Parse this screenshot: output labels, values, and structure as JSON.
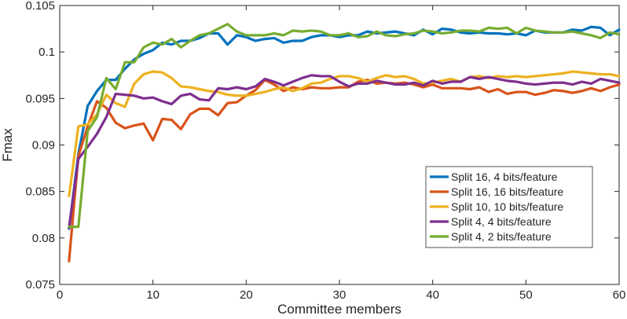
{
  "chart_data": {
    "type": "line",
    "title": "",
    "xlabel": "Committee members",
    "ylabel": "Fmax",
    "xlim": [
      0,
      60
    ],
    "ylim": [
      0.075,
      0.105
    ],
    "xticks": [
      0,
      10,
      20,
      30,
      40,
      50,
      60
    ],
    "xtick_labels": [
      "0",
      "10",
      "20",
      "30",
      "40",
      "50",
      "60"
    ],
    "yticks": [
      0.075,
      0.08,
      0.085,
      0.09,
      0.095,
      0.1,
      0.105
    ],
    "ytick_labels": [
      "0.075",
      "0.08",
      "0.085",
      "0.09",
      "0.095",
      "0.1",
      "0.105"
    ],
    "grid": false,
    "legend_position": "center-right",
    "x": [
      1,
      2,
      3,
      4,
      5,
      6,
      7,
      8,
      9,
      10,
      11,
      12,
      13,
      14,
      15,
      16,
      17,
      18,
      19,
      20,
      21,
      22,
      23,
      24,
      25,
      26,
      27,
      28,
      29,
      30,
      31,
      32,
      33,
      34,
      35,
      36,
      37,
      38,
      39,
      40,
      41,
      42,
      43,
      44,
      45,
      46,
      47,
      48,
      49,
      50,
      51,
      52,
      53,
      54,
      55,
      56,
      57,
      58,
      59,
      60
    ],
    "series": [
      {
        "name": "Split 16, 4 bits/feature",
        "color": "#0072BD",
        "values": [
          0.081,
          0.089,
          0.0942,
          0.0958,
          0.097,
          0.097,
          0.0982,
          0.0992,
          0.0998,
          0.1002,
          0.101,
          0.1008,
          0.1012,
          0.1012,
          0.1015,
          0.102,
          0.102,
          0.1008,
          0.1018,
          0.1016,
          0.1012,
          0.1014,
          0.1015,
          0.101,
          0.1012,
          0.1012,
          0.1016,
          0.1018,
          0.1018,
          0.1016,
          0.1018,
          0.1018,
          0.1022,
          0.102,
          0.1021,
          0.1022,
          0.102,
          0.1018,
          0.1024,
          0.1019,
          0.1025,
          0.1024,
          0.1021,
          0.102,
          0.1021,
          0.102,
          0.102,
          0.1019,
          0.102,
          0.1018,
          0.1023,
          0.1021,
          0.1021,
          0.1021,
          0.1024,
          0.1023,
          0.1027,
          0.1026,
          0.1018,
          0.1024
        ]
      },
      {
        "name": "Split 16, 16 bits/feature",
        "color": "#D95319",
        "values": [
          0.0775,
          0.0888,
          0.092,
          0.0947,
          0.094,
          0.0924,
          0.0918,
          0.0921,
          0.0923,
          0.0905,
          0.0928,
          0.0927,
          0.0917,
          0.0933,
          0.0939,
          0.0939,
          0.0932,
          0.0945,
          0.0946,
          0.0953,
          0.0959,
          0.097,
          0.0965,
          0.0958,
          0.0962,
          0.096,
          0.0962,
          0.0961,
          0.0961,
          0.0962,
          0.0962,
          0.0968,
          0.097,
          0.0966,
          0.0967,
          0.0966,
          0.0967,
          0.0965,
          0.0962,
          0.0965,
          0.0961,
          0.0961,
          0.0961,
          0.096,
          0.0962,
          0.0957,
          0.096,
          0.0955,
          0.0957,
          0.0957,
          0.0954,
          0.0956,
          0.0959,
          0.0958,
          0.0956,
          0.0958,
          0.0961,
          0.0958,
          0.0962,
          0.0965
        ]
      },
      {
        "name": "Split 10, 10 bits/feature",
        "color": "#EDB120",
        "values": [
          0.0845,
          0.092,
          0.0922,
          0.0933,
          0.0954,
          0.0945,
          0.0941,
          0.0966,
          0.0976,
          0.0979,
          0.0978,
          0.0972,
          0.0963,
          0.0962,
          0.096,
          0.0958,
          0.0957,
          0.0954,
          0.0953,
          0.0953,
          0.0955,
          0.0957,
          0.096,
          0.0962,
          0.0958,
          0.0961,
          0.0966,
          0.0967,
          0.0971,
          0.0974,
          0.0974,
          0.0972,
          0.0968,
          0.0972,
          0.0975,
          0.0973,
          0.0974,
          0.0971,
          0.0966,
          0.0967,
          0.0969,
          0.0971,
          0.0968,
          0.0973,
          0.0974,
          0.0972,
          0.0974,
          0.0973,
          0.0974,
          0.0973,
          0.0974,
          0.0975,
          0.0976,
          0.0977,
          0.0979,
          0.0978,
          0.0977,
          0.0976,
          0.0976,
          0.0974
        ]
      },
      {
        "name": "Split 4, 4 bits/feature",
        "color": "#7E2F8E",
        "values": [
          0.0811,
          0.0885,
          0.0898,
          0.0912,
          0.093,
          0.0955,
          0.0954,
          0.0953,
          0.095,
          0.0951,
          0.0947,
          0.0944,
          0.0953,
          0.0955,
          0.0949,
          0.0948,
          0.0961,
          0.096,
          0.0962,
          0.096,
          0.0963,
          0.0971,
          0.0968,
          0.0964,
          0.0968,
          0.0972,
          0.0975,
          0.0974,
          0.0974,
          0.0968,
          0.0963,
          0.0966,
          0.0966,
          0.0969,
          0.0967,
          0.0965,
          0.0965,
          0.0967,
          0.0964,
          0.0969,
          0.0966,
          0.0968,
          0.0968,
          0.0973,
          0.0971,
          0.0973,
          0.0971,
          0.0969,
          0.0968,
          0.0966,
          0.0965,
          0.0966,
          0.0967,
          0.0967,
          0.0965,
          0.0968,
          0.0966,
          0.0971,
          0.0969,
          0.0967
        ]
      },
      {
        "name": "Split 4, 2 bits/feature",
        "color": "#77AC30",
        "values": [
          0.0812,
          0.0812,
          0.0915,
          0.093,
          0.0972,
          0.096,
          0.0989,
          0.0989,
          0.1005,
          0.101,
          0.1008,
          0.1014,
          0.1005,
          0.1012,
          0.1018,
          0.102,
          0.1025,
          0.103,
          0.1022,
          0.1018,
          0.1018,
          0.1018,
          0.102,
          0.1018,
          0.1023,
          0.1022,
          0.1023,
          0.1022,
          0.1018,
          0.1018,
          0.102,
          0.1016,
          0.1017,
          0.1022,
          0.1018,
          0.1017,
          0.1019,
          0.102,
          0.1023,
          0.1022,
          0.102,
          0.1021,
          0.1023,
          0.1023,
          0.1022,
          0.1026,
          0.1025,
          0.1026,
          0.102,
          0.1026,
          0.1023,
          0.1022,
          0.1021,
          0.1021,
          0.1022,
          0.102,
          0.1018,
          0.1015,
          0.1021,
          0.1019
        ]
      }
    ]
  }
}
